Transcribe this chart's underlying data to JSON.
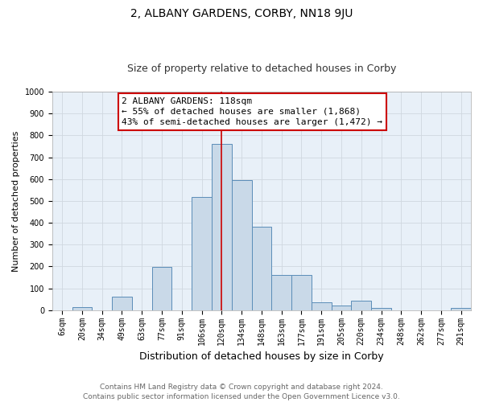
{
  "title": "2, ALBANY GARDENS, CORBY, NN18 9JU",
  "subtitle": "Size of property relative to detached houses in Corby",
  "xlabel": "Distribution of detached houses by size in Corby",
  "ylabel": "Number of detached properties",
  "categories": [
    "6sqm",
    "20sqm",
    "34sqm",
    "49sqm",
    "63sqm",
    "77sqm",
    "91sqm",
    "106sqm",
    "120sqm",
    "134sqm",
    "148sqm",
    "163sqm",
    "177sqm",
    "191sqm",
    "205sqm",
    "220sqm",
    "234sqm",
    "248sqm",
    "262sqm",
    "277sqm",
    "291sqm"
  ],
  "values": [
    0,
    13,
    0,
    60,
    0,
    197,
    0,
    519,
    759,
    597,
    383,
    160,
    160,
    37,
    20,
    42,
    10,
    0,
    0,
    0,
    10
  ],
  "bar_color": "#c9d9e8",
  "bar_edge_color": "#5b8db8",
  "grid_color": "#d0d8e0",
  "background_color": "#ffffff",
  "plot_bg_color": "#e8f0f8",
  "vline_color": "#cc0000",
  "annotation_line1": "2 ALBANY GARDENS: 118sqm",
  "annotation_line2": "← 55% of detached houses are smaller (1,868)",
  "annotation_line3": "43% of semi-detached houses are larger (1,472) →",
  "annotation_box_color": "#cc0000",
  "ylim": [
    0,
    1000
  ],
  "yticks": [
    0,
    100,
    200,
    300,
    400,
    500,
    600,
    700,
    800,
    900,
    1000
  ],
  "footer_line1": "Contains HM Land Registry data © Crown copyright and database right 2024.",
  "footer_line2": "Contains public sector information licensed under the Open Government Licence v3.0.",
  "title_fontsize": 10,
  "subtitle_fontsize": 9,
  "xlabel_fontsize": 9,
  "ylabel_fontsize": 8,
  "tick_fontsize": 7,
  "annotation_fontsize": 8,
  "footer_fontsize": 6.5,
  "vline_index": 8
}
